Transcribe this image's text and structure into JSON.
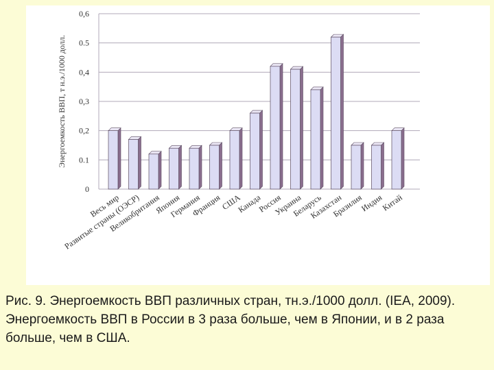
{
  "caption": "Рис. 9. Энергоемкость ВВП различных стран, тн.э./1000 долл. (IEA, 2009). Энергоемкость ВВП в России в 3 раза больше, чем в Японии, и в 2 раза больше, чем в США.",
  "colors": {
    "background": "#fcfcd6",
    "bar_face": "#dcdcf4",
    "bar_side": "#8a6e8e",
    "bar_top": "#ece8f6",
    "grid": "#b0a8b8",
    "text": "#333333"
  },
  "chart_data": {
    "type": "bar",
    "ylabel": "Энергоемкость ВВП, т н.э./1000 долл.",
    "ylim": [
      0,
      0.6
    ],
    "yticks": [
      0,
      0.1,
      0.2,
      0.3,
      0.4,
      0.5,
      0.6
    ],
    "ytick_labels": [
      "0",
      "0.1",
      "0,2",
      "0,3",
      "0,4",
      "0.5",
      "0,6"
    ],
    "grid": true,
    "categories": [
      "Весь мир",
      "Развитые страны (ОЭСР)",
      "Великобритания",
      "Япония",
      "Германия",
      "Франция",
      "США",
      "Канада",
      "Россия",
      "Украина",
      "Беларусь",
      "Казахстан",
      "Бразилия",
      "Индия",
      "Китай"
    ],
    "values": [
      0.2,
      0.17,
      0.12,
      0.14,
      0.14,
      0.15,
      0.2,
      0.26,
      0.42,
      0.41,
      0.34,
      0.52,
      0.15,
      0.15,
      0.2
    ]
  }
}
